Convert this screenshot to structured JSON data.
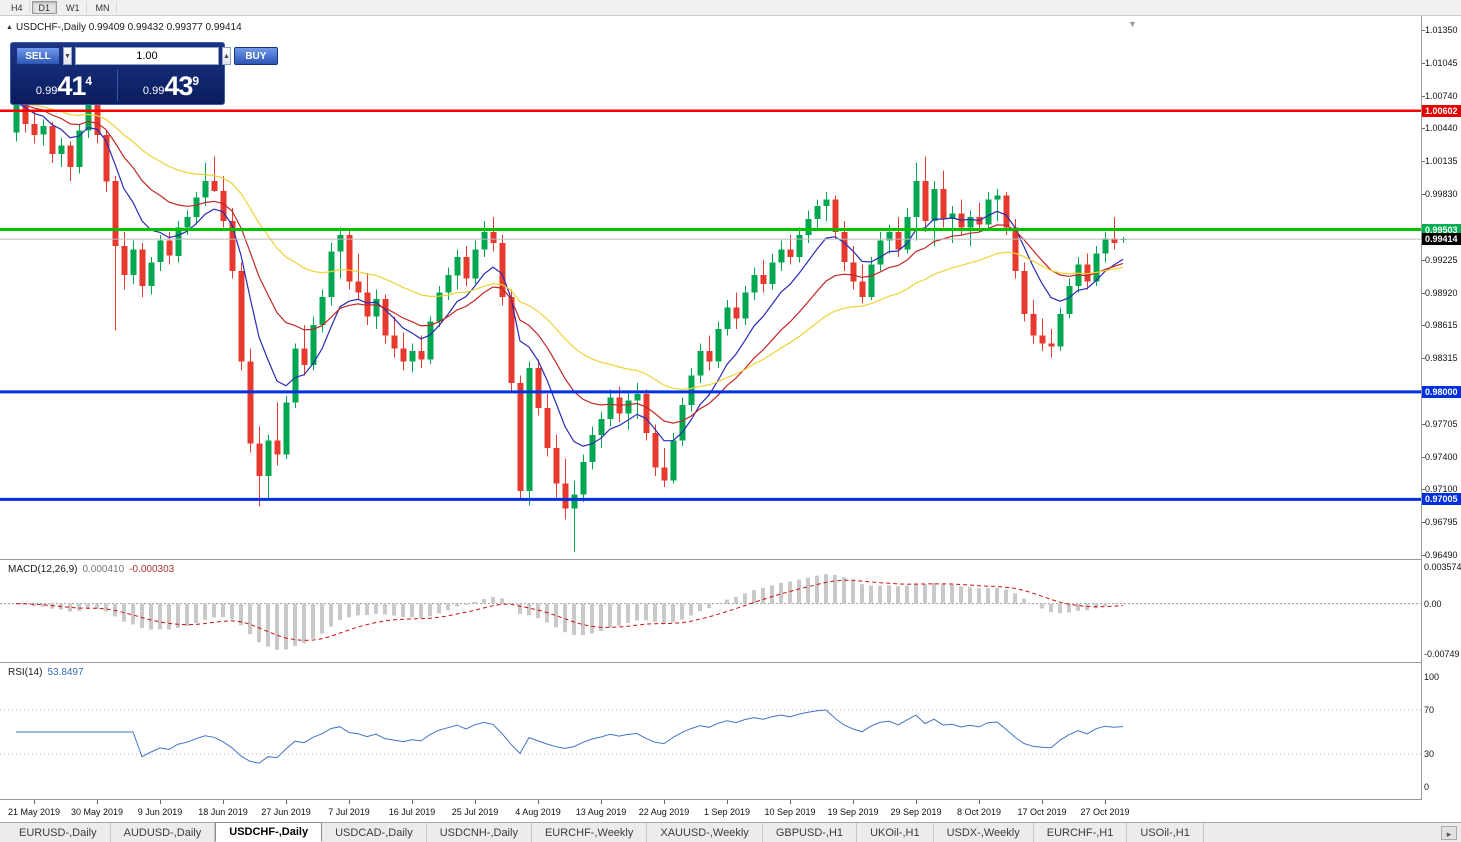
{
  "period_toolbar": {
    "buttons": [
      {
        "label": "H4",
        "active": false
      },
      {
        "label": "D1",
        "active": true
      },
      {
        "label": "W1",
        "active": false
      },
      {
        "label": "MN",
        "active": false
      }
    ]
  },
  "chart_header": {
    "title": "USDCHF-,Daily 0.99409 0.99432 0.99377 0.99414"
  },
  "icons": {
    "title_marker": "▲",
    "end_marker": "▼",
    "spin_up": "▲",
    "spin_down": "▼",
    "tab_scroll": "▸"
  },
  "trade_panel": {
    "sell_label": "SELL",
    "buy_label": "BUY",
    "volume": "1.00",
    "sell_price": {
      "prefix": "0.99",
      "big": "41",
      "sup": "4"
    },
    "buy_price": {
      "prefix": "0.99",
      "big": "43",
      "sup": "9"
    }
  },
  "colors": {
    "up": "#00A650",
    "down": "#E8392E",
    "ma_fast": "#2A2AB4",
    "ma_mid": "#C02828",
    "ma_slow": "#EFD234",
    "macd_hist": "#C9C9C9",
    "macd_signal": "#CC1111",
    "rsi_line": "#4573C4",
    "current_line": "#BBBBBB",
    "level_red": "#FF0000",
    "level_green": "#00C000",
    "level_blue": "#0030E0"
  },
  "price_scale": {
    "ticks": [
      "1.01350",
      "1.01045",
      "1.00740",
      "1.00440",
      "1.00135",
      "0.99830",
      "0.99225",
      "0.98920",
      "0.98615",
      "0.98315",
      "0.97705",
      "0.97400",
      "0.97100",
      "0.96795",
      "0.96490"
    ],
    "badges": [
      {
        "price": 1.00602,
        "text": "1.00602",
        "color": "#E80000"
      },
      {
        "price": 0.99503,
        "text": "0.99503",
        "color": "#00B050"
      },
      {
        "price": 0.99414,
        "text": "0.99414",
        "color": "#000000"
      },
      {
        "price": 0.98,
        "text": "0.98000",
        "color": "#0030E0"
      },
      {
        "price": 0.97005,
        "text": "0.97005",
        "color": "#0030E0"
      }
    ]
  },
  "macd_panel": {
    "label": "MACD(12,26,9)",
    "value_main": "0.000410",
    "value_signal": "-0.000303",
    "axis_top": "0.003574",
    "axis_zero": "0.00",
    "axis_bottom": "-0.00749"
  },
  "rsi_panel": {
    "label": "RSI(14)",
    "value": "53.8497",
    "axis": [
      "100",
      "70",
      "30",
      "0"
    ],
    "levels": [
      70,
      30
    ]
  },
  "date_axis": {
    "labels": [
      {
        "text": "21 May 2019",
        "bar": 2
      },
      {
        "text": "30 May 2019",
        "bar": 9
      },
      {
        "text": "9 Jun 2019",
        "bar": 16
      },
      {
        "text": "18 Jun 2019",
        "bar": 23
      },
      {
        "text": "27 Jun 2019",
        "bar": 30
      },
      {
        "text": "7 Jul 2019",
        "bar": 37
      },
      {
        "text": "16 Jul 2019",
        "bar": 44
      },
      {
        "text": "25 Jul 2019",
        "bar": 51
      },
      {
        "text": "4 Aug 2019",
        "bar": 58
      },
      {
        "text": "13 Aug 2019",
        "bar": 65
      },
      {
        "text": "22 Aug 2019",
        "bar": 72
      },
      {
        "text": "1 Sep 2019",
        "bar": 79
      },
      {
        "text": "10 Sep 2019",
        "bar": 86
      },
      {
        "text": "19 Sep 2019",
        "bar": 93
      },
      {
        "text": "29 Sep 2019",
        "bar": 100
      },
      {
        "text": "8 Oct 2019",
        "bar": 107
      },
      {
        "text": "17 Oct 2019",
        "bar": 114
      },
      {
        "text": "27 Oct 2019",
        "bar": 121
      }
    ]
  },
  "tabs": {
    "items": [
      {
        "label": "EURUSD-,Daily",
        "active": false
      },
      {
        "label": "AUDUSD-,Daily",
        "active": false
      },
      {
        "label": "USDCHF-,Daily",
        "active": true
      },
      {
        "label": "USDCAD-,Daily",
        "active": false
      },
      {
        "label": "USDCNH-,Daily",
        "active": false
      },
      {
        "label": "EURCHF-,Weekly",
        "active": false
      },
      {
        "label": "XAUUSD-,Weekly",
        "active": false
      },
      {
        "label": "GBPUSD-,H1",
        "active": false
      },
      {
        "label": "UKOil-,H1",
        "active": false
      },
      {
        "label": "USDX-,Weekly",
        "active": false
      },
      {
        "label": "EURCHF-,H1",
        "active": false
      },
      {
        "label": "USOil-,H1",
        "active": false
      }
    ]
  },
  "chart_data": {
    "type": "candlestick",
    "symbol": "USDCHF",
    "timeframe": "Daily",
    "ohlc_current": {
      "open": 0.99409,
      "high": 0.99432,
      "low": 0.99377,
      "close": 0.99414
    },
    "y_axis": {
      "min": 0.9649,
      "max": 1.0135
    },
    "h_lines": [
      {
        "name": "red-resistance-line",
        "price": 1.00602,
        "color": "#FF0000",
        "width": 2.5,
        "interactable": true
      },
      {
        "name": "green-level-line",
        "price": 0.99503,
        "color": "#00C000",
        "width": 3,
        "interactable": true
      },
      {
        "name": "current-price-line",
        "price": 0.99414,
        "color": "#BBBBBB",
        "width": 1,
        "interactable": false
      },
      {
        "name": "blue-support-line-1",
        "price": 0.98,
        "color": "#0030E0",
        "width": 3,
        "interactable": true
      },
      {
        "name": "blue-support-line-2",
        "price": 0.97005,
        "color": "#0030E0",
        "width": 3,
        "interactable": true
      }
    ],
    "moving_averages": [
      {
        "period": 8,
        "color": "#2A2AB4"
      },
      {
        "period": 17,
        "color": "#C02828"
      },
      {
        "period": 34,
        "color": "#EFD234"
      }
    ],
    "indicators": {
      "macd": {
        "fast": 12,
        "slow": 26,
        "signal": 9,
        "current_main": 0.00041,
        "current_signal": -0.000303
      },
      "rsi": {
        "period": 14,
        "current": 53.8497
      }
    },
    "candles": [
      [
        1.004,
        1.0075,
        1.0032,
        1.0068
      ],
      [
        1.0068,
        1.0074,
        1.004,
        1.0048
      ],
      [
        1.0048,
        1.006,
        1.003,
        1.0038
      ],
      [
        1.0038,
        1.0052,
        1.0028,
        1.0046
      ],
      [
        1.0046,
        1.005,
        1.0012,
        1.002
      ],
      [
        1.002,
        1.0035,
        1.0008,
        1.0028
      ],
      [
        1.0028,
        1.0032,
        0.9995,
        1.0008
      ],
      [
        1.0008,
        1.0048,
        1.0002,
        1.0042
      ],
      [
        1.0042,
        1.0078,
        1.0035,
        1.0072
      ],
      [
        1.0072,
        1.0075,
        1.003,
        1.0038
      ],
      [
        1.0038,
        1.0042,
        0.9985,
        0.9995
      ],
      [
        0.9995,
        1.0,
        0.9857,
        0.9935
      ],
      [
        0.9935,
        0.9948,
        0.9895,
        0.9908
      ],
      [
        0.9908,
        0.994,
        0.99,
        0.9932
      ],
      [
        0.9932,
        0.9938,
        0.9888,
        0.9898
      ],
      [
        0.9898,
        0.9925,
        0.989,
        0.992
      ],
      [
        0.992,
        0.9945,
        0.9912,
        0.994
      ],
      [
        0.994,
        0.9948,
        0.9918,
        0.9926
      ],
      [
        0.9926,
        0.9958,
        0.992,
        0.9952
      ],
      [
        0.9952,
        0.9968,
        0.9945,
        0.9962
      ],
      [
        0.9962,
        0.9985,
        0.9955,
        0.998
      ],
      [
        0.998,
        1.0012,
        0.9972,
        0.9995
      ],
      [
        0.9995,
        1.0018,
        0.9985,
        0.9986
      ],
      [
        0.9986,
        1.0,
        0.9952,
        0.9958
      ],
      [
        0.9958,
        0.997,
        0.9905,
        0.9912
      ],
      [
        0.9912,
        0.992,
        0.982,
        0.9828
      ],
      [
        0.9828,
        0.984,
        0.9744,
        0.9752
      ],
      [
        0.9752,
        0.9768,
        0.9694,
        0.9722
      ],
      [
        0.9722,
        0.976,
        0.97,
        0.9755
      ],
      [
        0.9755,
        0.979,
        0.9732,
        0.9742
      ],
      [
        0.9742,
        0.9796,
        0.9738,
        0.979
      ],
      [
        0.979,
        0.9845,
        0.9785,
        0.984
      ],
      [
        0.984,
        0.9862,
        0.9815,
        0.9825
      ],
      [
        0.9825,
        0.987,
        0.982,
        0.9862
      ],
      [
        0.9862,
        0.9895,
        0.9855,
        0.9888
      ],
      [
        0.9888,
        0.9938,
        0.988,
        0.993
      ],
      [
        0.993,
        0.9952,
        0.9905,
        0.9945
      ],
      [
        0.9945,
        0.995,
        0.9895,
        0.9902
      ],
      [
        0.9902,
        0.9928,
        0.9885,
        0.9892
      ],
      [
        0.9892,
        0.991,
        0.9862,
        0.987
      ],
      [
        0.987,
        0.9895,
        0.9858,
        0.9886
      ],
      [
        0.9886,
        0.989,
        0.9845,
        0.9852
      ],
      [
        0.9852,
        0.987,
        0.9832,
        0.984
      ],
      [
        0.984,
        0.9855,
        0.982,
        0.9828
      ],
      [
        0.9828,
        0.9845,
        0.9818,
        0.9838
      ],
      [
        0.9838,
        0.9852,
        0.9822,
        0.983
      ],
      [
        0.983,
        0.987,
        0.9826,
        0.9865
      ],
      [
        0.9865,
        0.9898,
        0.986,
        0.9892
      ],
      [
        0.9892,
        0.9915,
        0.9885,
        0.9908
      ],
      [
        0.9908,
        0.9932,
        0.9895,
        0.9925
      ],
      [
        0.9925,
        0.9935,
        0.9898,
        0.9905
      ],
      [
        0.9905,
        0.994,
        0.99,
        0.9932
      ],
      [
        0.9932,
        0.9958,
        0.9925,
        0.9948
      ],
      [
        0.9948,
        0.9962,
        0.993,
        0.9938
      ],
      [
        0.9938,
        0.9945,
        0.988,
        0.9888
      ],
      [
        0.9888,
        0.9895,
        0.98,
        0.9808
      ],
      [
        0.9808,
        0.9815,
        0.97,
        0.9708
      ],
      [
        0.9708,
        0.9828,
        0.9695,
        0.9822
      ],
      [
        0.9822,
        0.983,
        0.9778,
        0.9785
      ],
      [
        0.9785,
        0.9798,
        0.974,
        0.9748
      ],
      [
        0.9748,
        0.976,
        0.9702,
        0.9715
      ],
      [
        0.9715,
        0.9738,
        0.9682,
        0.9692
      ],
      [
        0.9692,
        0.9718,
        0.9652,
        0.9705
      ],
      [
        0.9705,
        0.9742,
        0.9698,
        0.9735
      ],
      [
        0.9735,
        0.9768,
        0.9728,
        0.976
      ],
      [
        0.976,
        0.9782,
        0.9748,
        0.9775
      ],
      [
        0.9775,
        0.9802,
        0.9768,
        0.9795
      ],
      [
        0.9795,
        0.9805,
        0.9772,
        0.978
      ],
      [
        0.978,
        0.98,
        0.9765,
        0.9792
      ],
      [
        0.9792,
        0.9808,
        0.9775,
        0.9798
      ],
      [
        0.9798,
        0.9802,
        0.9755,
        0.9762
      ],
      [
        0.9762,
        0.977,
        0.9722,
        0.973
      ],
      [
        0.973,
        0.9748,
        0.9712,
        0.9718
      ],
      [
        0.9718,
        0.9762,
        0.9715,
        0.9755
      ],
      [
        0.9755,
        0.9795,
        0.975,
        0.9788
      ],
      [
        0.9788,
        0.9822,
        0.9782,
        0.9815
      ],
      [
        0.9815,
        0.9845,
        0.9808,
        0.9838
      ],
      [
        0.9838,
        0.9852,
        0.982,
        0.9828
      ],
      [
        0.9828,
        0.9865,
        0.9822,
        0.9858
      ],
      [
        0.9858,
        0.9885,
        0.9852,
        0.9878
      ],
      [
        0.9878,
        0.9892,
        0.9858,
        0.9868
      ],
      [
        0.9868,
        0.9898,
        0.9862,
        0.9892
      ],
      [
        0.9892,
        0.9915,
        0.9885,
        0.9908
      ],
      [
        0.9908,
        0.9922,
        0.9892,
        0.99
      ],
      [
        0.99,
        0.9928,
        0.9895,
        0.992
      ],
      [
        0.992,
        0.994,
        0.9912,
        0.9932
      ],
      [
        0.9932,
        0.9945,
        0.9918,
        0.9925
      ],
      [
        0.9925,
        0.9952,
        0.992,
        0.9945
      ],
      [
        0.9945,
        0.9968,
        0.9938,
        0.996
      ],
      [
        0.996,
        0.9978,
        0.995,
        0.9972
      ],
      [
        0.9972,
        0.9985,
        0.9958,
        0.9978
      ],
      [
        0.9978,
        0.9982,
        0.9942,
        0.9948
      ],
      [
        0.9948,
        0.9958,
        0.9912,
        0.992
      ],
      [
        0.992,
        0.9935,
        0.9895,
        0.9902
      ],
      [
        0.9902,
        0.9918,
        0.9882,
        0.9888
      ],
      [
        0.9888,
        0.9925,
        0.9885,
        0.9918
      ],
      [
        0.9918,
        0.9948,
        0.9912,
        0.994
      ],
      [
        0.994,
        0.9955,
        0.9928,
        0.9948
      ],
      [
        0.9948,
        0.9962,
        0.9925,
        0.9932
      ],
      [
        0.9932,
        0.997,
        0.9928,
        0.9962
      ],
      [
        0.9962,
        1.0012,
        0.994,
        0.9995
      ],
      [
        0.9995,
        1.0018,
        0.9948,
        0.9958
      ],
      [
        0.9958,
        0.9995,
        0.9935,
        0.9988
      ],
      [
        0.9988,
        1.0005,
        0.9952,
        0.996
      ],
      [
        0.996,
        0.9972,
        0.9938,
        0.9965
      ],
      [
        0.9965,
        0.9978,
        0.9945,
        0.9952
      ],
      [
        0.9952,
        0.9968,
        0.9935,
        0.9962
      ],
      [
        0.9962,
        0.9975,
        0.9948,
        0.9955
      ],
      [
        0.9955,
        0.9985,
        0.995,
        0.9978
      ],
      [
        0.9978,
        0.9988,
        0.9958,
        0.9982
      ],
      [
        0.9982,
        0.9985,
        0.9945,
        0.9952
      ],
      [
        0.9952,
        0.996,
        0.9905,
        0.9912
      ],
      [
        0.9912,
        0.992,
        0.9865,
        0.9872
      ],
      [
        0.9872,
        0.9885,
        0.9845,
        0.9852
      ],
      [
        0.9852,
        0.9868,
        0.9838,
        0.9845
      ],
      [
        0.9845,
        0.9858,
        0.9832,
        0.9842
      ],
      [
        0.9842,
        0.9878,
        0.9838,
        0.9872
      ],
      [
        0.9872,
        0.9905,
        0.9868,
        0.9898
      ],
      [
        0.9898,
        0.9925,
        0.9892,
        0.9918
      ],
      [
        0.9918,
        0.9928,
        0.9895,
        0.9902
      ],
      [
        0.9902,
        0.9935,
        0.9898,
        0.9928
      ],
      [
        0.9928,
        0.9948,
        0.992,
        0.9942
      ],
      [
        0.9942,
        0.9962,
        0.9932,
        0.9938
      ],
      [
        0.99409,
        0.99432,
        0.99377,
        0.99414
      ]
    ]
  }
}
